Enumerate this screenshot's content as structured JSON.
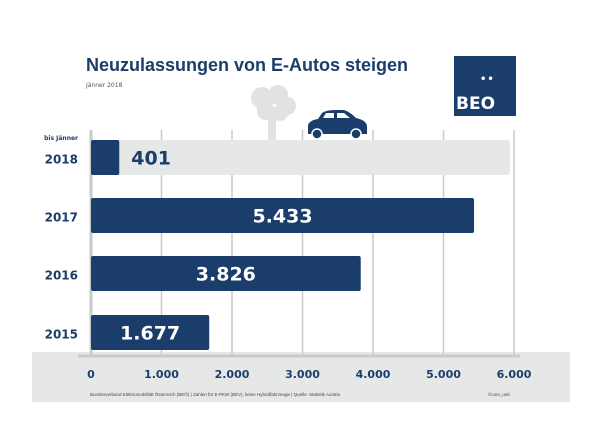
{
  "chart_data": {
    "type": "bar",
    "orientation": "horizontal",
    "title": "Neuzulassungen von E-Autos steigen",
    "subtitle": "Jänner 2018",
    "categories": [
      {
        "label": "2018",
        "prefix": "bis Jänner"
      },
      {
        "label": "2017",
        "prefix": ""
      },
      {
        "label": "2016",
        "prefix": ""
      },
      {
        "label": "2015",
        "prefix": ""
      }
    ],
    "values": [
      401,
      5433,
      3826,
      1677
    ],
    "data_labels": [
      "401",
      "5.433",
      "3.826",
      "1.677"
    ],
    "xlim": [
      0,
      6000
    ],
    "xticks": [
      0,
      1000,
      2000,
      3000,
      4000,
      5000,
      6000
    ],
    "xtick_labels": [
      "0",
      "1.000",
      "2.000",
      "3.000",
      "4.000",
      "5.000",
      "6.000"
    ],
    "grid": true,
    "colors": {
      "bar": "#1b3d6b",
      "highlight_background": "#e6e8e7",
      "grid": "#c8cbca",
      "text": "#1b3d6b"
    }
  },
  "logo": {
    "text": "BEO"
  },
  "footer": {
    "source": "Bundesverband Elektromobilität Österreich (BEÖ) | Zahlen für E-PKW (BEV), keine Hybridfahrzeuge | Quelle: Statistik Austria",
    "credit": "©com_unit"
  }
}
